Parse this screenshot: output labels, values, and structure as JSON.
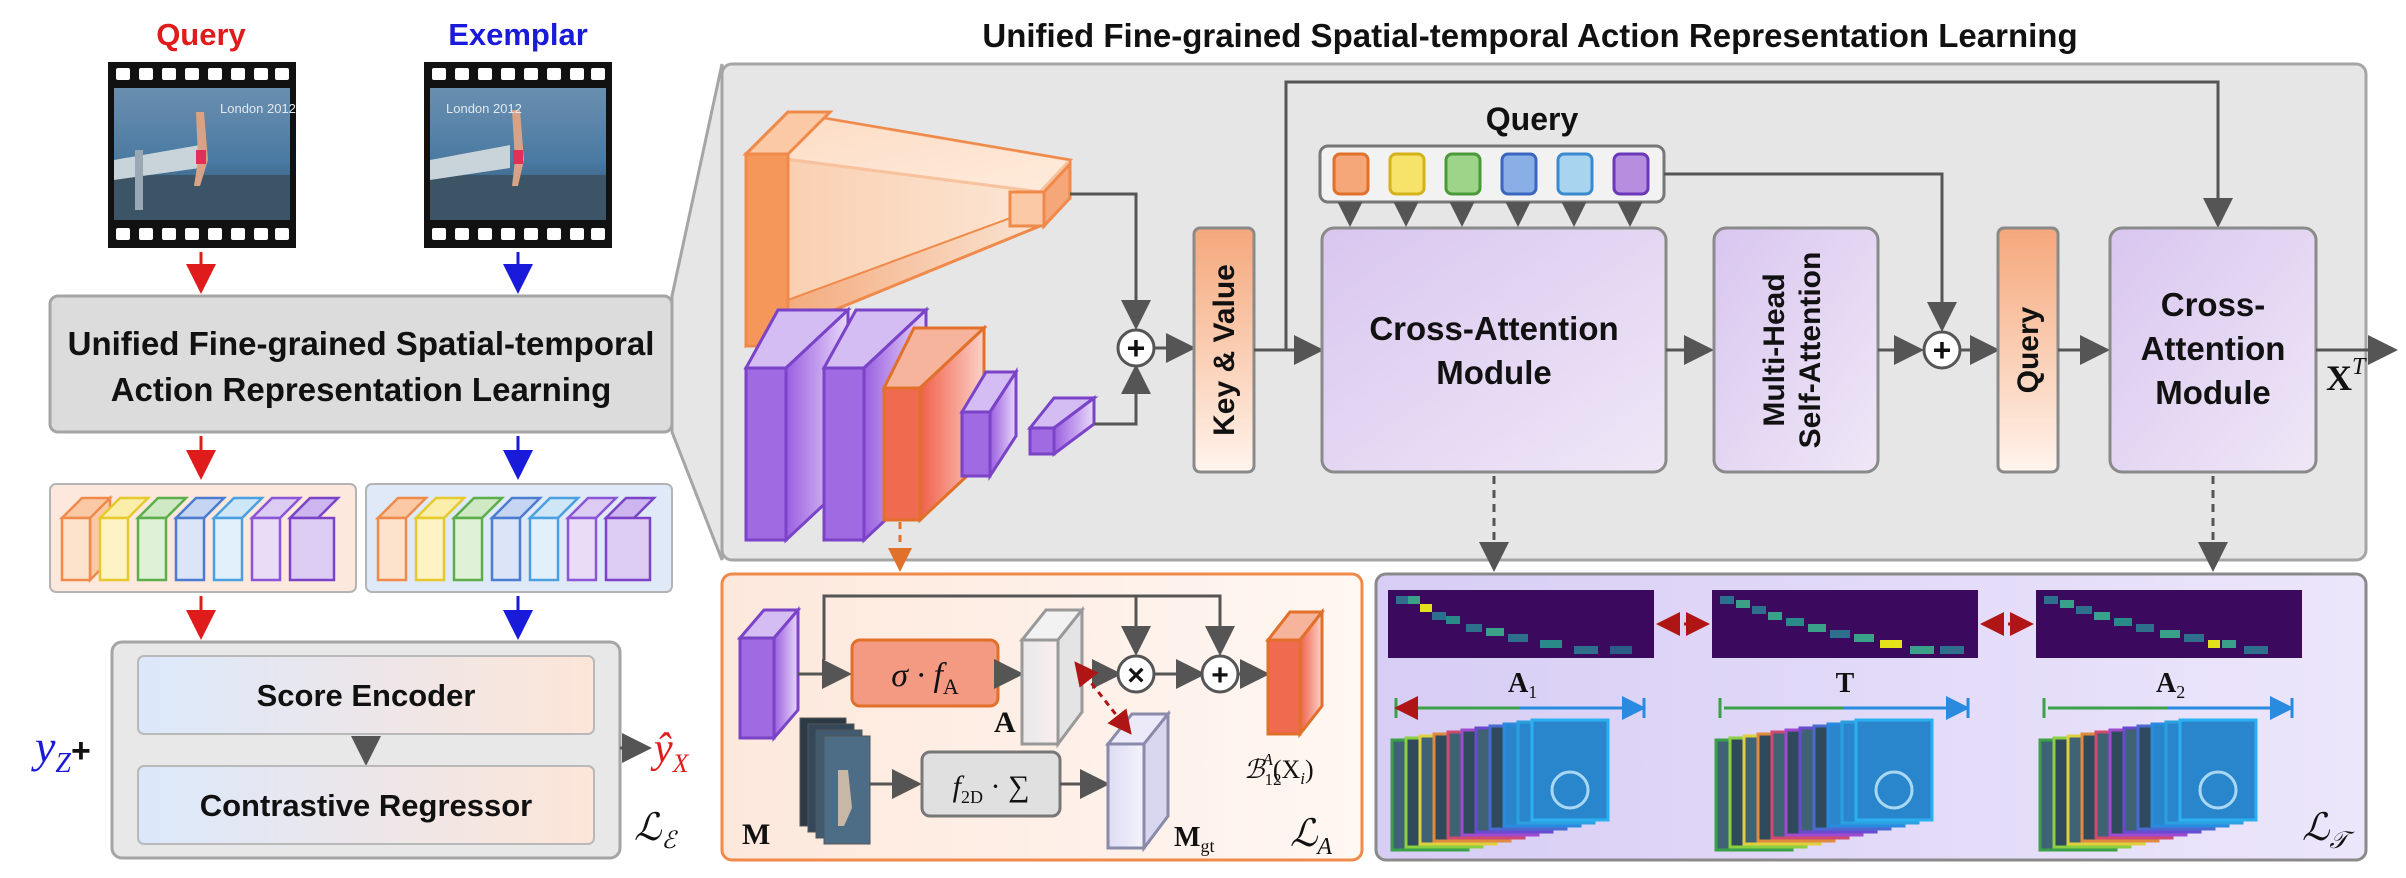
{
  "title": "Unified Fine-grained Spatial-temporal Action Representation Learning",
  "left": {
    "query_label": "Query",
    "exemplar_label": "Exemplar",
    "video_caption": "London 2012",
    "main_box_line1": "Unified Fine-grained Spatial-temporal",
    "main_box_line2": "Action Representation Learning",
    "score_encoder": "Score Encoder",
    "contrastive_regressor": "Contrastive Regressor",
    "y_z": "y",
    "y_z_sub": "Z",
    "plus": "+",
    "y_hat": "ŷ",
    "y_hat_sub": "X",
    "loss": "ℒ",
    "loss_sub": "ℰ"
  },
  "main": {
    "query_label": "Query",
    "key_value": "Key & Value",
    "cross_attention_1_line1": "Cross-Attention",
    "cross_attention_1_line2": "Module",
    "mhsa_line1": "Multi-Head",
    "mhsa_line2": "Self-Attention",
    "query_vertical": "Query",
    "cross_attention_2_line1": "Cross-",
    "cross_attention_2_line2": "Attention",
    "cross_attention_2_line3": "Module",
    "output": "X",
    "output_sup": "T",
    "plus_symbol": "+"
  },
  "bottom_left": {
    "sigma_fa": "σ · f",
    "sigma_fa_sub": "A",
    "A_label": "A",
    "M_label": "M",
    "f2d_sum": "f",
    "f2d_sub": "2D",
    "f2d_rest": " · ∑",
    "mgt": "M",
    "mgt_sub": "gt",
    "b_label": "ℬ",
    "b_sup": "A",
    "b_sub": "12",
    "b_arg": "(X",
    "b_arg_sub": "i",
    "b_close": ")",
    "times": "×",
    "plus": "+",
    "loss": "ℒ",
    "loss_sub": "A"
  },
  "bottom_right": {
    "A1": "A",
    "A1_sub": "1",
    "T": "T",
    "A2": "A",
    "A2_sub": "2",
    "loss": "ℒ",
    "loss_sub": "𝒯"
  },
  "query_token_colors": [
    "#f5a77a",
    "#f7e36a",
    "#9ed48a",
    "#8aaee6",
    "#a8d4f0",
    "#b58ee0"
  ],
  "accent": {
    "red": "#e01b1b",
    "blue": "#1a1adb",
    "purple": "#9b5fe0",
    "orange": "#f08a4b"
  }
}
